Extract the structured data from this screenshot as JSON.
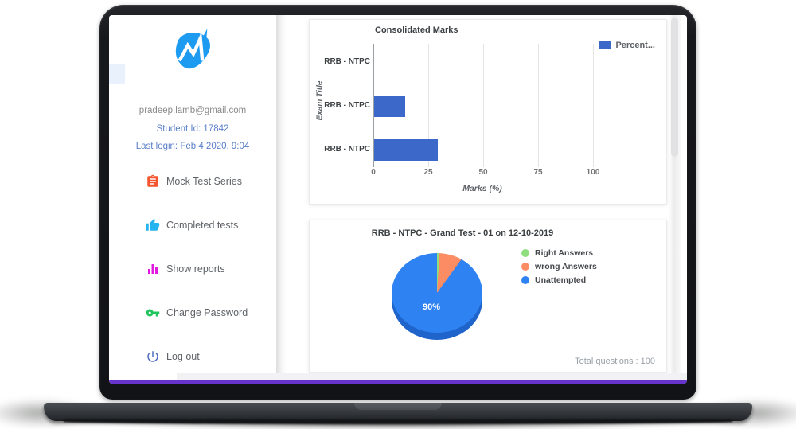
{
  "sidebar": {
    "logo_name": "app-logo",
    "logo_color": "#1d9bf0",
    "email": "pradeep.lamb@gmail.com",
    "student_id": "Student Id: 17842",
    "last_login": "Last login: Feb 4 2020, 9:04",
    "items": [
      {
        "label": "Mock Test Series",
        "icon": "clipboard-icon",
        "color": "#f4552f"
      },
      {
        "label": "Completed tests",
        "icon": "thumb-up-icon",
        "color": "#25b4f0"
      },
      {
        "label": "Show reports",
        "icon": "bar-chart-icon",
        "color": "#e318e0"
      },
      {
        "label": "Change Password",
        "icon": "key-icon",
        "color": "#21c45d"
      },
      {
        "label": "Log out",
        "icon": "power-icon",
        "color": "#4d6cc0"
      }
    ]
  },
  "chart_data": [
    {
      "type": "bar",
      "orientation": "horizontal",
      "title": "Consolidated Marks",
      "categories": [
        "RRB - NTPC",
        "RRB - NTPC",
        "RRB - NTPC"
      ],
      "series": [
        {
          "name": "Percent...",
          "values": [
            0,
            14,
            29
          ],
          "color": "#3b68c9"
        }
      ],
      "xlabel": "Marks (%)",
      "ylabel": "Exam Title",
      "xlim": [
        0,
        100
      ],
      "xticks": [
        0,
        25,
        50,
        75,
        100
      ],
      "grid": true,
      "legend_position": "top-right"
    },
    {
      "type": "pie",
      "title": "RRB - NTPC - Grand Test - 01 on 12-10-2019",
      "labels": [
        "Right Answers",
        "wrong Answers",
        "Unattempted"
      ],
      "values": [
        1,
        9,
        90
      ],
      "colors": [
        "#8ede7d",
        "#fb8c64",
        "#2e82f2"
      ],
      "depth_color": "#1e64cb",
      "shown_label": "90%",
      "note": "Total questions : 100",
      "legend_position": "right",
      "effect": "3d"
    }
  ],
  "footer": {
    "progress_color": "#6633cc"
  }
}
